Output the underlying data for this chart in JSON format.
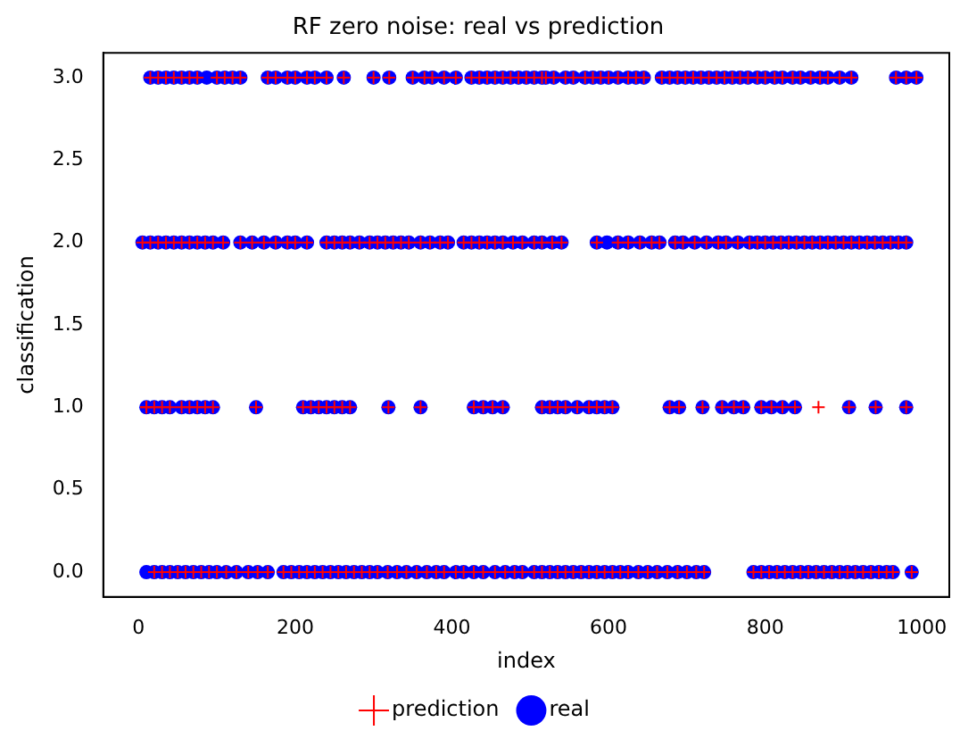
{
  "chart_data": {
    "type": "scatter",
    "title": "RF zero noise: real vs prediction",
    "xlabel": "index",
    "ylabel": "classification",
    "xlim": [
      -45,
      1035
    ],
    "ylim": [
      -0.15,
      3.15
    ],
    "xticks": [
      0,
      200,
      400,
      600,
      800,
      1000
    ],
    "yticks": [
      {
        "value": 0,
        "label": "0.0"
      },
      {
        "value": 0.5,
        "label": "0.5"
      },
      {
        "value": 1,
        "label": "1.0"
      },
      {
        "value": 1.5,
        "label": "1.5"
      },
      {
        "value": 2,
        "label": "2.0"
      },
      {
        "value": 2.5,
        "label": "2.5"
      },
      {
        "value": 3,
        "label": "3.0"
      }
    ],
    "grid": false,
    "legend": "bottom",
    "series": [
      {
        "name": "real",
        "color": "#0000ff",
        "marker": "circle",
        "x": [
          15,
          25,
          35,
          45,
          55,
          65,
          75,
          87,
          100,
          110,
          120,
          130,
          165,
          175,
          190,
          200,
          215,
          225,
          240,
          262,
          300,
          320,
          350,
          365,
          375,
          390,
          405,
          425,
          435,
          445,
          455,
          465,
          475,
          485,
          495,
          505,
          515,
          520,
          530,
          545,
          555,
          570,
          580,
          590,
          600,
          612,
          625,
          635,
          645,
          668,
          678,
          688,
          698,
          708,
          718,
          728,
          738,
          748,
          758,
          768,
          778,
          790,
          800,
          812,
          822,
          835,
          845,
          858,
          870,
          880,
          895,
          910,
          967,
          980,
          993,
          5,
          15,
          25,
          35,
          45,
          55,
          65,
          75,
          85,
          95,
          108,
          130,
          145,
          160,
          175,
          190,
          200,
          215,
          240,
          250,
          260,
          270,
          282,
          295,
          305,
          315,
          325,
          335,
          345,
          360,
          372,
          385,
          395,
          415,
          425,
          435,
          445,
          455,
          465,
          478,
          490,
          505,
          515,
          528,
          540,
          585,
          598,
          612,
          625,
          640,
          655,
          665,
          685,
          695,
          710,
          725,
          740,
          750,
          765,
          780,
          790,
          800,
          810,
          820,
          830,
          840,
          850,
          860,
          870,
          880,
          890,
          900,
          910,
          920,
          930,
          940,
          950,
          960,
          970,
          980,
          10,
          20,
          30,
          40,
          55,
          65,
          75,
          85,
          95,
          150,
          210,
          220,
          230,
          240,
          250,
          260,
          270,
          319,
          360,
          428,
          440,
          452,
          465,
          515,
          525,
          535,
          545,
          560,
          575,
          585,
          595,
          605,
          678,
          690,
          720,
          745,
          760,
          772,
          795,
          808,
          822,
          838,
          907,
          941,
          980,
          10,
          20,
          30,
          40,
          50,
          60,
          70,
          80,
          90,
          100,
          112,
          125,
          140,
          152,
          165,
          185,
          195,
          205,
          215,
          225,
          235,
          245,
          255,
          265,
          275,
          285,
          295,
          305,
          318,
          330,
          342,
          355,
          368,
          380,
          390,
          405,
          415,
          428,
          440,
          455,
          468,
          480,
          490,
          505,
          515,
          525,
          535,
          545,
          555,
          565,
          575,
          585,
          595,
          605,
          615,
          625,
          638,
          650,
          662,
          675,
          688,
          700,
          712,
          722,
          785,
          795,
          805,
          815,
          825,
          835,
          845,
          855,
          865,
          875,
          885,
          895,
          905,
          915,
          925,
          935,
          945,
          955,
          963,
          987
        ],
        "values": [
          3,
          3,
          3,
          3,
          3,
          3,
          3,
          3,
          3,
          3,
          3,
          3,
          3,
          3,
          3,
          3,
          3,
          3,
          3,
          3,
          3,
          3,
          3,
          3,
          3,
          3,
          3,
          3,
          3,
          3,
          3,
          3,
          3,
          3,
          3,
          3,
          3,
          3,
          3,
          3,
          3,
          3,
          3,
          3,
          3,
          3,
          3,
          3,
          3,
          3,
          3,
          3,
          3,
          3,
          3,
          3,
          3,
          3,
          3,
          3,
          3,
          3,
          3,
          3,
          3,
          3,
          3,
          3,
          3,
          3,
          3,
          3,
          3,
          3,
          3,
          2,
          2,
          2,
          2,
          2,
          2,
          2,
          2,
          2,
          2,
          2,
          2,
          2,
          2,
          2,
          2,
          2,
          2,
          2,
          2,
          2,
          2,
          2,
          2,
          2,
          2,
          2,
          2,
          2,
          2,
          2,
          2,
          2,
          2,
          2,
          2,
          2,
          2,
          2,
          2,
          2,
          2,
          2,
          2,
          2,
          2,
          2,
          2,
          2,
          2,
          2,
          2,
          2,
          2,
          2,
          2,
          2,
          2,
          2,
          2,
          2,
          2,
          2,
          2,
          2,
          2,
          2,
          2,
          2,
          2,
          2,
          2,
          2,
          2,
          2,
          2,
          2,
          2,
          2,
          2,
          1,
          1,
          1,
          1,
          1,
          1,
          1,
          1,
          1,
          1,
          1,
          1,
          1,
          1,
          1,
          1,
          1,
          1,
          1,
          1,
          1,
          1,
          1,
          1,
          1,
          1,
          1,
          1,
          1,
          1,
          1,
          1,
          1,
          1,
          1,
          1,
          1,
          1,
          1,
          1,
          1,
          1,
          1,
          1,
          1,
          0,
          0,
          0,
          0,
          0,
          0,
          0,
          0,
          0,
          0,
          0,
          0,
          0,
          0,
          0,
          0,
          0,
          0,
          0,
          0,
          0,
          0,
          0,
          0,
          0,
          0,
          0,
          0,
          0,
          0,
          0,
          0,
          0,
          0,
          0,
          0,
          0,
          0,
          0,
          0,
          0,
          0,
          0,
          0,
          0,
          0,
          0,
          0,
          0,
          0,
          0,
          0,
          0,
          0,
          0,
          0,
          0,
          0,
          0,
          0,
          0,
          0,
          0,
          0,
          0,
          0,
          0,
          0,
          0,
          0,
          0,
          0,
          0,
          0,
          0,
          0,
          0,
          0,
          0,
          0,
          0,
          0,
          0,
          0
        ]
      },
      {
        "name": "prediction",
        "color": "#ff0000",
        "marker": "cross",
        "x": [
          15,
          25,
          35,
          45,
          55,
          65,
          75,
          100,
          110,
          120,
          130,
          165,
          175,
          190,
          200,
          215,
          225,
          240,
          262,
          300,
          320,
          350,
          365,
          375,
          390,
          405,
          425,
          435,
          445,
          455,
          465,
          475,
          485,
          495,
          505,
          515,
          520,
          530,
          545,
          555,
          570,
          580,
          590,
          600,
          612,
          625,
          635,
          645,
          668,
          678,
          688,
          698,
          708,
          718,
          728,
          738,
          748,
          758,
          768,
          778,
          790,
          800,
          812,
          822,
          835,
          845,
          858,
          870,
          880,
          895,
          910,
          967,
          980,
          993,
          5,
          15,
          25,
          35,
          45,
          55,
          65,
          75,
          85,
          95,
          108,
          130,
          145,
          160,
          175,
          190,
          200,
          215,
          240,
          250,
          260,
          270,
          282,
          295,
          305,
          315,
          325,
          335,
          345,
          360,
          372,
          385,
          395,
          415,
          425,
          435,
          445,
          455,
          465,
          478,
          490,
          505,
          515,
          528,
          540,
          585,
          612,
          625,
          640,
          655,
          665,
          685,
          695,
          710,
          725,
          740,
          750,
          765,
          780,
          790,
          800,
          810,
          820,
          830,
          840,
          850,
          860,
          870,
          880,
          890,
          900,
          910,
          920,
          930,
          940,
          950,
          960,
          970,
          980,
          10,
          20,
          30,
          40,
          55,
          65,
          75,
          85,
          95,
          150,
          210,
          220,
          230,
          240,
          250,
          260,
          270,
          319,
          360,
          428,
          440,
          452,
          465,
          515,
          525,
          535,
          545,
          560,
          575,
          585,
          595,
          605,
          678,
          690,
          720,
          745,
          760,
          772,
          795,
          808,
          822,
          838,
          868,
          907,
          941,
          980,
          10,
          20,
          30,
          40,
          50,
          60,
          70,
          80,
          90,
          100,
          112,
          125,
          140,
          152,
          165,
          185,
          195,
          205,
          215,
          225,
          235,
          245,
          255,
          265,
          275,
          285,
          295,
          305,
          318,
          330,
          342,
          355,
          368,
          380,
          390,
          405,
          415,
          428,
          440,
          455,
          468,
          480,
          490,
          505,
          515,
          525,
          535,
          545,
          555,
          565,
          575,
          585,
          595,
          605,
          615,
          625,
          638,
          650,
          662,
          675,
          688,
          700,
          712,
          722,
          785,
          795,
          805,
          815,
          825,
          835,
          845,
          855,
          865,
          875,
          885,
          895,
          905,
          915,
          925,
          935,
          945,
          955,
          963,
          987
        ],
        "values": [
          3,
          3,
          3,
          3,
          3,
          3,
          3,
          3,
          3,
          3,
          3,
          3,
          3,
          3,
          3,
          3,
          3,
          3,
          3,
          3,
          3,
          3,
          3,
          3,
          3,
          3,
          3,
          3,
          3,
          3,
          3,
          3,
          3,
          3,
          3,
          3,
          3,
          3,
          3,
          3,
          3,
          3,
          3,
          3,
          3,
          3,
          3,
          3,
          3,
          3,
          3,
          3,
          3,
          3,
          3,
          3,
          3,
          3,
          3,
          3,
          3,
          3,
          3,
          3,
          3,
          3,
          3,
          3,
          3,
          3,
          3,
          3,
          3,
          3,
          2,
          2,
          2,
          2,
          2,
          2,
          2,
          2,
          2,
          2,
          2,
          2,
          2,
          2,
          2,
          2,
          2,
          2,
          2,
          2,
          2,
          2,
          2,
          2,
          2,
          2,
          2,
          2,
          2,
          2,
          2,
          2,
          2,
          2,
          2,
          2,
          2,
          2,
          2,
          2,
          2,
          2,
          2,
          2,
          2,
          2,
          2,
          2,
          2,
          2,
          2,
          2,
          2,
          2,
          2,
          2,
          2,
          2,
          2,
          2,
          2,
          2,
          2,
          2,
          2,
          2,
          2,
          2,
          2,
          2,
          2,
          2,
          2,
          2,
          2,
          2,
          2,
          2,
          2,
          1,
          1,
          1,
          1,
          1,
          1,
          1,
          1,
          1,
          1,
          1,
          1,
          1,
          1,
          1,
          1,
          1,
          1,
          1,
          1,
          1,
          1,
          1,
          1,
          1,
          1,
          1,
          1,
          1,
          1,
          1,
          1,
          1,
          1,
          1,
          1,
          1,
          1,
          1,
          1,
          1,
          1,
          1,
          1,
          1,
          1,
          1,
          0,
          0,
          0,
          0,
          0,
          0,
          0,
          0,
          0,
          0,
          0,
          0,
          0,
          0,
          0,
          0,
          0,
          0,
          0,
          0,
          0,
          0,
          0,
          0,
          0,
          0,
          0,
          0,
          0,
          0,
          0,
          0,
          0,
          0,
          0,
          0,
          0,
          0,
          0,
          0,
          0,
          0,
          0,
          0,
          0,
          0,
          0,
          0,
          0,
          0,
          0,
          0,
          0,
          0,
          0,
          0,
          0,
          0,
          0,
          0,
          0,
          0,
          0,
          0,
          0,
          0,
          0,
          0,
          0,
          0,
          0,
          0,
          0,
          0,
          0,
          0,
          0,
          0,
          0,
          0,
          0,
          0,
          0
        ]
      }
    ]
  }
}
